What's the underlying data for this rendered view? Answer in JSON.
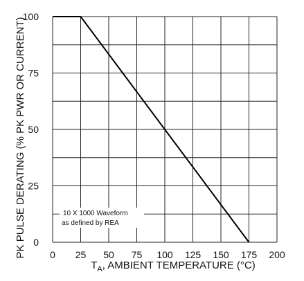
{
  "chart_data": {
    "type": "line",
    "title": "",
    "xlabel_main": "T",
    "xlabel_sub": "A",
    "xlabel_rest": ", AMBIENT TEMPERATURE (°C)",
    "ylabel": "PK PULSE DERATING (% PK PWR OR CURRENT)",
    "xlim": [
      0,
      200
    ],
    "ylim": [
      0,
      100
    ],
    "x_ticks": [
      0,
      25,
      50,
      75,
      100,
      125,
      150,
      175,
      200
    ],
    "x_tick_labels": [
      "0",
      "25",
      "50",
      "75",
      "100",
      "125",
      "150",
      "175",
      "200"
    ],
    "y_ticks": [
      0,
      25,
      50,
      75,
      100
    ],
    "y_tick_labels": [
      "0",
      "25",
      "50",
      "75",
      "100"
    ],
    "grid": true,
    "series": [
      {
        "x": [
          0,
          25,
          175
        ],
        "y": [
          100,
          100,
          0
        ]
      }
    ],
    "annotation": {
      "line1": "10 X 1000 Waveform",
      "line2": "as defined by REA"
    }
  }
}
